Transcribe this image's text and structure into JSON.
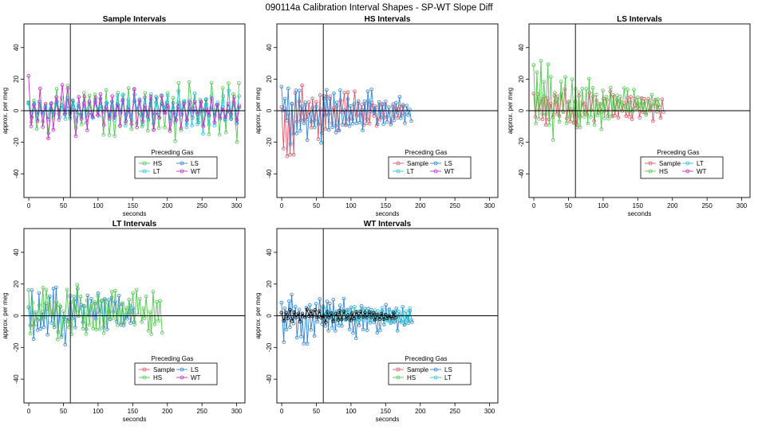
{
  "figure": {
    "title": "090114a   Calibration Interval Shapes - SP-WT Slope Diff"
  },
  "chart_data": [
    {
      "type": "line",
      "title": "Sample Intervals",
      "xlabel": "seconds",
      "ylabel": "approx. per meg",
      "xlim": [
        -7,
        312
      ],
      "ylim": [
        -55,
        55
      ],
      "xticks": [
        0,
        50,
        100,
        150,
        200,
        250,
        300
      ],
      "yticks": [
        -40,
        -20,
        0,
        20,
        40
      ],
      "ref_vline": 60,
      "ref_hline": 0,
      "legend": {
        "title": "Preceding Gas",
        "entries": [
          "HS",
          "LS",
          "LT",
          "WT"
        ],
        "ncol": 2
      },
      "series": [
        {
          "name": "HS",
          "color": "#4fc94f",
          "x_start": 0,
          "x_step": 4,
          "amp_start": 22,
          "amp_end": 38,
          "offset": 0,
          "seed": 11,
          "n": 77
        },
        {
          "name": "LS",
          "color": "#2f86d6",
          "x_start": 0,
          "x_step": 4,
          "amp_start": 14,
          "amp_end": 16,
          "offset": 0,
          "seed": 23,
          "n": 77
        },
        {
          "name": "LT",
          "color": "#29c6d6",
          "x_start": 0,
          "x_step": 4,
          "amp_start": 12,
          "amp_end": 24,
          "offset": 0,
          "seed": 37,
          "n": 77
        },
        {
          "name": "WT",
          "color": "#c82cc8",
          "x_start": 0,
          "x_step": 4,
          "amp_start": 30,
          "amp_end": 14,
          "offset": 0,
          "seed": 41,
          "n": 77
        }
      ]
    },
    {
      "type": "line",
      "title": "HS Intervals",
      "xlabel": "seconds",
      "ylabel": "approx. per meg",
      "xlim": [
        -7,
        312
      ],
      "ylim": [
        -55,
        55
      ],
      "xticks": [
        0,
        50,
        100,
        150,
        200,
        250,
        300
      ],
      "yticks": [
        -40,
        -20,
        0,
        20,
        40
      ],
      "ref_vline": 60,
      "ref_hline": 0,
      "legend": {
        "title": "Preceding Gas",
        "entries": [
          "Sample",
          "LS",
          "LT",
          "WT"
        ],
        "ncol": 2
      },
      "series": [
        {
          "name": "Sample",
          "color": "#e0546a",
          "x_start": 0,
          "x_step": 2.5,
          "amp_start": 42,
          "amp_end": 8,
          "offset": -2,
          "seed": 53,
          "n": 72
        },
        {
          "name": "LS",
          "color": "#2f86d6",
          "x_start": 0,
          "x_step": 2.5,
          "amp_start": 40,
          "amp_end": 12,
          "offset": 0,
          "seed": 67,
          "n": 76
        }
      ]
    },
    {
      "type": "line",
      "title": "LS Intervals",
      "xlabel": "seconds",
      "ylabel": "approx. per meg",
      "xlim": [
        -7,
        312
      ],
      "ylim": [
        -55,
        55
      ],
      "xticks": [
        0,
        50,
        100,
        150,
        200,
        250,
        300
      ],
      "yticks": [
        -40,
        -20,
        0,
        20,
        40
      ],
      "ref_vline": 60,
      "ref_hline": 0,
      "legend": {
        "title": "Preceding Gas",
        "entries": [
          "Sample",
          "LT",
          "HS",
          "WT"
        ],
        "ncol": 2
      },
      "series": [
        {
          "name": "Sample",
          "color": "#e0546a",
          "x_start": 0,
          "x_step": 2.5,
          "amp_start": 20,
          "amp_end": 14,
          "offset": 2,
          "seed": 71,
          "n": 76
        },
        {
          "name": "HS",
          "color": "#4fc94f",
          "x_start": 0,
          "x_step": 2.5,
          "amp_start": 45,
          "amp_end": 10,
          "offset": 4,
          "seed": 83,
          "n": 74
        }
      ]
    },
    {
      "type": "line",
      "title": "LT Intervals",
      "xlabel": "seconds",
      "ylabel": "approx. per meg",
      "xlim": [
        -7,
        312
      ],
      "ylim": [
        -55,
        55
      ],
      "xticks": [
        0,
        50,
        100,
        150,
        200,
        250,
        300
      ],
      "yticks": [
        -40,
        -20,
        0,
        20,
        40
      ],
      "ref_vline": 60,
      "ref_hline": 0,
      "legend": {
        "title": "Preceding Gas",
        "entries": [
          "Sample",
          "LS",
          "HS",
          "WT"
        ],
        "ncol": 2
      },
      "series": [
        {
          "name": "LS",
          "color": "#2f86d6",
          "x_start": 0,
          "x_step": 2.5,
          "amp_start": 34,
          "amp_end": 14,
          "offset": 2,
          "seed": 97,
          "n": 62
        },
        {
          "name": "HS",
          "color": "#4fc94f",
          "x_start": 0,
          "x_step": 2.5,
          "amp_start": 30,
          "amp_end": 24,
          "offset": 2,
          "seed": 101,
          "n": 78
        }
      ]
    },
    {
      "type": "line",
      "title": "WT Intervals",
      "xlabel": "seconds",
      "ylabel": "approx. per meg",
      "xlim": [
        -7,
        312
      ],
      "ylim": [
        -55,
        55
      ],
      "xticks": [
        0,
        50,
        100,
        150,
        200,
        250,
        300
      ],
      "yticks": [
        -40,
        -20,
        0,
        20,
        40
      ],
      "ref_vline": 60,
      "ref_hline": 0,
      "legend": {
        "title": "Preceding Gas",
        "entries": [
          "Sample",
          "LS",
          "HS",
          "LT"
        ],
        "ncol": 2
      },
      "series": [
        {
          "name": "LS",
          "color": "#2f86d6",
          "x_start": 0,
          "x_step": 2.5,
          "amp_start": 30,
          "amp_end": 12,
          "offset": -2,
          "seed": 113,
          "n": 76
        },
        {
          "name": "LT",
          "color": "#29c6d6",
          "x_start": 60,
          "x_step": 2.5,
          "amp_start": 8,
          "amp_end": 10,
          "offset": 0,
          "seed": 127,
          "n": 52
        },
        {
          "name": "",
          "color": "#111111",
          "x_start": 0,
          "x_step": 3,
          "amp_start": 8,
          "amp_end": 4,
          "offset": 0,
          "seed": 131,
          "n": 56
        }
      ]
    }
  ]
}
